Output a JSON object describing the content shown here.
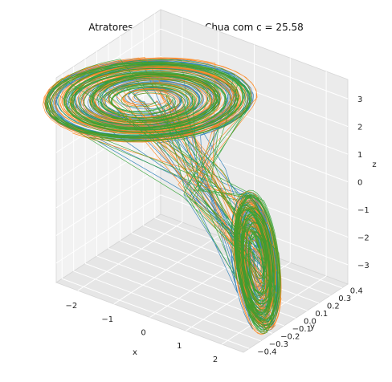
{
  "chart_data": {
    "type": "line",
    "projection": "3d",
    "title": "Atratores do circuito de Chua com c = 25.58",
    "xlabel": "x",
    "ylabel": "y",
    "zlabel": "z",
    "xlim": [
      -2.6,
      2.6
    ],
    "ylim": [
      -0.45,
      0.45
    ],
    "zlim": [
      -3.7,
      3.7
    ],
    "xticks": [
      -2,
      -1,
      0,
      1,
      2
    ],
    "xtick_labels": [
      "−2",
      "−1",
      "0",
      "1",
      "2"
    ],
    "yticks": [
      -0.4,
      -0.3,
      -0.2,
      -0.1,
      0.0,
      0.1,
      0.2,
      0.3,
      0.4
    ],
    "ytick_labels": [
      "−0.4",
      "−0.3",
      "−0.2",
      "−0.1",
      "0.0",
      "0.1",
      "0.2",
      "0.3",
      "0.4"
    ],
    "zticks": [
      -3,
      -2,
      -1,
      0,
      1,
      2,
      3
    ],
    "ztick_labels": [
      "−3",
      "−2",
      "−1",
      "0",
      "1",
      "2",
      "3"
    ],
    "grid": true,
    "series": [
      {
        "color": "#1f77b4",
        "description": "double-scroll trajectory"
      },
      {
        "color": "#ff7f0e",
        "description": "double-scroll trajectory"
      },
      {
        "color": "#2ca02c",
        "description": "double-scroll trajectory"
      }
    ],
    "attractor": {
      "scroll_centers": [
        {
          "x": -1.5,
          "y": 0.0,
          "z": 2.2
        },
        {
          "x": 1.5,
          "y": 0.0,
          "z": -2.2
        }
      ],
      "max_radius": 2.3,
      "y_range": [
        -0.42,
        0.42
      ]
    }
  }
}
